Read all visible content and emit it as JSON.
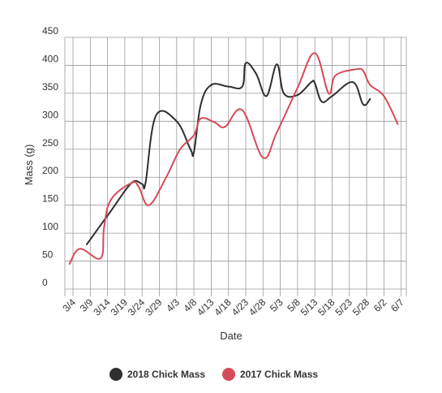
{
  "chart_data": {
    "type": "line",
    "title": "",
    "xlabel": "Date",
    "ylabel": "Mass (g)",
    "ylim": [
      0,
      450
    ],
    "yticks": [
      0,
      50,
      100,
      150,
      200,
      250,
      300,
      350,
      400,
      450
    ],
    "grid": true,
    "legend_position": "bottom",
    "categories": [
      "3/4",
      "3/9",
      "3/14",
      "3/19",
      "3/24",
      "3/29",
      "4/3",
      "4/8",
      "4/13",
      "4/18",
      "4/23",
      "4/28",
      "5/3",
      "5/8",
      "5/13",
      "5/18",
      "5/23",
      "5/28",
      "6/2",
      "6/7"
    ],
    "series": [
      {
        "name": "2018 Chick Mass",
        "color": "#2f2f2f",
        "points": [
          [
            "3/8",
            80
          ],
          [
            "3/15",
            140
          ],
          [
            "3/21",
            190
          ],
          [
            "3/24",
            188
          ],
          [
            "3/25",
            190
          ],
          [
            "3/28",
            310
          ],
          [
            "4/3",
            300
          ],
          [
            "4/7",
            250
          ],
          [
            "4/8",
            245
          ],
          [
            "4/10",
            330
          ],
          [
            "4/13",
            365
          ],
          [
            "4/18",
            362
          ],
          [
            "4/22",
            362
          ],
          [
            "4/23",
            404
          ],
          [
            "4/26",
            385
          ],
          [
            "4/29",
            345
          ],
          [
            "5/2",
            402
          ],
          [
            "5/4",
            350
          ],
          [
            "5/8",
            347
          ],
          [
            "5/12",
            370
          ],
          [
            "5/13",
            368
          ],
          [
            "5/15",
            335
          ],
          [
            "5/18",
            345
          ],
          [
            "5/24",
            370
          ],
          [
            "5/27",
            330
          ],
          [
            "5/29",
            340
          ]
        ]
      },
      {
        "name": "2017 Chick Mass",
        "color": "#d64a56",
        "points": [
          [
            "3/3",
            45
          ],
          [
            "3/6",
            72
          ],
          [
            "3/12",
            55
          ],
          [
            "3/13",
            110
          ],
          [
            "3/15",
            160
          ],
          [
            "3/21",
            190
          ],
          [
            "3/23",
            183
          ],
          [
            "3/26",
            150
          ],
          [
            "3/31",
            200
          ],
          [
            "4/4",
            250
          ],
          [
            "4/8",
            275
          ],
          [
            "4/10",
            305
          ],
          [
            "4/14",
            298
          ],
          [
            "4/17",
            290
          ],
          [
            "4/22",
            320
          ],
          [
            "4/28",
            235
          ],
          [
            "5/2",
            280
          ],
          [
            "5/8",
            360
          ],
          [
            "5/13",
            422
          ],
          [
            "5/17",
            350
          ],
          [
            "5/19",
            382
          ],
          [
            "5/25",
            393
          ],
          [
            "5/27",
            390
          ],
          [
            "5/29",
            365
          ],
          [
            "6/2",
            345
          ],
          [
            "6/6",
            295
          ]
        ]
      }
    ]
  }
}
